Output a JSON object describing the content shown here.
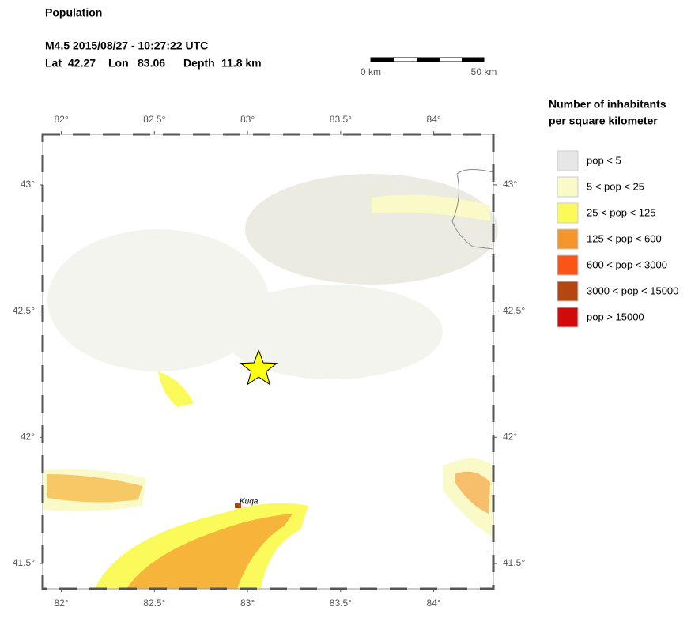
{
  "header": {
    "title": "Population",
    "event": "M4.5  2015/08/27 - 10:27:22 UTC",
    "lat_label": "Lat",
    "lat": 42.27,
    "lon_label": "Lon",
    "lon": 83.06,
    "depth_label": "Depth",
    "depth": "11.8 km"
  },
  "scale_bar": {
    "start": "0 km",
    "end": "50 km"
  },
  "map": {
    "xlim": [
      81.9,
      84.32
    ],
    "ylim": [
      41.4,
      43.2
    ],
    "xticks": [
      {
        "value": 82,
        "label": "82°"
      },
      {
        "value": 82.5,
        "label": "82.5°"
      },
      {
        "value": 83,
        "label": "83°"
      },
      {
        "value": 83.5,
        "label": "83.5°"
      },
      {
        "value": 84,
        "label": "84°"
      }
    ],
    "yticks": [
      {
        "value": 43,
        "label": "43°"
      },
      {
        "value": 42.5,
        "label": "42.5°"
      },
      {
        "value": 42,
        "label": "42°"
      },
      {
        "value": 41.5,
        "label": "41.5°"
      }
    ],
    "city": "Kuqa"
  },
  "legend": {
    "title_line1": "Number of inhabitants",
    "title_line2": "per square kilometer",
    "entries": [
      {
        "label": "pop < 5",
        "color": "#e6e6e6"
      },
      {
        "label": "5 < pop < 25",
        "color": "#fafac8"
      },
      {
        "label": "25 < pop < 125",
        "color": "#fafa5a"
      },
      {
        "label": "125 < pop < 600",
        "color": "#f5962d"
      },
      {
        "label": "600 < pop < 3000",
        "color": "#fa5514"
      },
      {
        "label": "3000 < pop < 15000",
        "color": "#b4460f"
      },
      {
        "label": "pop > 15000",
        "color": "#d20a0a"
      }
    ]
  }
}
